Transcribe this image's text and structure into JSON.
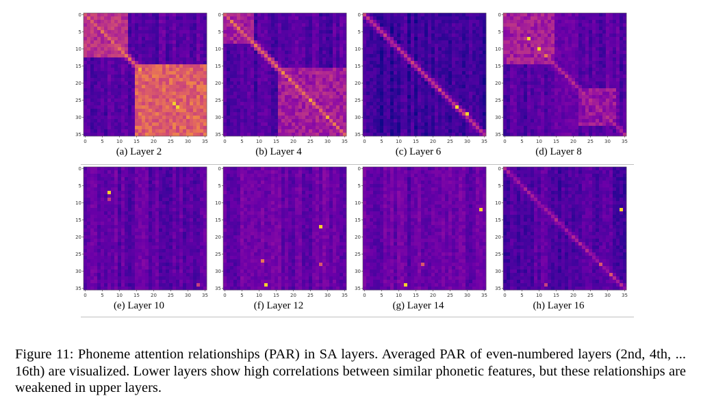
{
  "figure": {
    "caption": "Figure 11: Phoneme attention relationships (PAR) in SA layers. Averaged PAR of even-numbered layers (2nd, 4th, ... 16th) are visualized. Lower layers show high correlations between similar phonetic features, but these relationships are weakened in upper layers."
  },
  "panels": [
    {
      "label": "(a) Layer 2"
    },
    {
      "label": "(b) Layer 4"
    },
    {
      "label": "(c) Layer 6"
    },
    {
      "label": "(d) Layer 8"
    },
    {
      "label": "(e) Layer 10"
    },
    {
      "label": "(f) Layer 12"
    },
    {
      "label": "(g) Layer 14"
    },
    {
      "label": "(h) Layer 16"
    }
  ],
  "chart_data": [
    {
      "type": "heatmap",
      "title": "(a) Layer 2",
      "size": 36,
      "x_ticks": [
        0,
        5,
        10,
        15,
        20,
        25,
        30,
        35
      ],
      "y_ticks": [
        0,
        5,
        10,
        15,
        20,
        25,
        30,
        35
      ],
      "colormap": "plasma",
      "pattern": "strong block-diagonal: bright block 0-12, very bright block 15-35",
      "blocks": [
        [
          0,
          12,
          0.55
        ],
        [
          15,
          35,
          0.72
        ]
      ],
      "diag": 0.75,
      "base": 0.2,
      "hot": [
        [
          16,
          16,
          0.9
        ],
        [
          26,
          26,
          0.95
        ],
        [
          27,
          27,
          0.95
        ],
        [
          30,
          30,
          0.85
        ],
        [
          8,
          8,
          0.75
        ]
      ]
    },
    {
      "type": "heatmap",
      "title": "(b) Layer 4",
      "size": 36,
      "x_ticks": [
        0,
        5,
        10,
        15,
        20,
        25,
        30,
        35
      ],
      "y_ticks": [
        0,
        5,
        10,
        15,
        20,
        25,
        30,
        35
      ],
      "colormap": "plasma",
      "pattern": "diagonal with moderate blocks",
      "blocks": [
        [
          0,
          8,
          0.45
        ],
        [
          16,
          35,
          0.45
        ]
      ],
      "diag": 0.75,
      "base": 0.18,
      "hot": [
        [
          17,
          17,
          0.85
        ],
        [
          25,
          25,
          0.9
        ],
        [
          30,
          30,
          0.9
        ],
        [
          3,
          3,
          0.7
        ]
      ]
    },
    {
      "type": "heatmap",
      "title": "(c) Layer 6",
      "size": 36,
      "x_ticks": [
        0,
        5,
        10,
        15,
        20,
        25,
        30,
        35
      ],
      "y_ticks": [
        0,
        5,
        10,
        15,
        20,
        25,
        30,
        35
      ],
      "colormap": "plasma",
      "pattern": "sparse diagonal",
      "blocks": [],
      "diag": 0.55,
      "base": 0.12,
      "hot": [
        [
          27,
          27,
          0.95
        ],
        [
          29,
          30,
          0.95
        ],
        [
          22,
          22,
          0.7
        ]
      ]
    },
    {
      "type": "heatmap",
      "title": "(d) Layer 8",
      "size": 36,
      "x_ticks": [
        0,
        5,
        10,
        15,
        20,
        25,
        30,
        35
      ],
      "y_ticks": [
        0,
        5,
        10,
        15,
        20,
        25,
        30,
        35
      ],
      "colormap": "plasma",
      "pattern": "bright column bands 5-12, block 22-30",
      "blocks": [
        [
          0,
          14,
          0.45
        ],
        [
          22,
          32,
          0.4
        ]
      ],
      "diag": 0.5,
      "base": 0.2,
      "hot": [
        [
          7,
          7,
          0.95
        ],
        [
          10,
          10,
          0.95
        ],
        [
          12,
          12,
          0.8
        ]
      ]
    },
    {
      "type": "heatmap",
      "title": "(e) Layer 10",
      "size": 36,
      "x_ticks": [
        0,
        5,
        10,
        15,
        20,
        25,
        30,
        35
      ],
      "y_ticks": [
        0,
        5,
        10,
        15,
        20,
        25,
        30,
        35
      ],
      "colormap": "plasma",
      "pattern": "mostly uniform dark purple",
      "blocks": [],
      "diag": 0.15,
      "base": 0.22,
      "hot": [
        [
          7,
          7,
          0.95
        ],
        [
          9,
          7,
          0.6
        ],
        [
          34,
          33,
          0.6
        ]
      ]
    },
    {
      "type": "heatmap",
      "title": "(f) Layer 12",
      "size": 36,
      "x_ticks": [
        0,
        5,
        10,
        15,
        20,
        25,
        30,
        35
      ],
      "y_ticks": [
        0,
        5,
        10,
        15,
        20,
        25,
        30,
        35
      ],
      "colormap": "plasma",
      "pattern": "scattered bright cells",
      "blocks": [],
      "diag": 0.15,
      "base": 0.25,
      "hot": [
        [
          17,
          28,
          0.95
        ],
        [
          34,
          12,
          0.95
        ],
        [
          27,
          11,
          0.8
        ],
        [
          28,
          28,
          0.7
        ]
      ]
    },
    {
      "type": "heatmap",
      "title": "(g) Layer 14",
      "size": 36,
      "x_ticks": [
        0,
        5,
        10,
        15,
        20,
        25,
        30,
        35
      ],
      "y_ticks": [
        0,
        5,
        10,
        15,
        20,
        25,
        30,
        35
      ],
      "colormap": "plasma",
      "pattern": "scattered bright cells",
      "blocks": [],
      "diag": 0.12,
      "base": 0.24,
      "hot": [
        [
          12,
          34,
          0.95
        ],
        [
          34,
          12,
          0.95
        ],
        [
          28,
          17,
          0.7
        ]
      ]
    },
    {
      "type": "heatmap",
      "title": "(h) Layer 16",
      "size": 36,
      "x_ticks": [
        0,
        5,
        10,
        15,
        20,
        25,
        30,
        35
      ],
      "y_ticks": [
        0,
        5,
        10,
        15,
        20,
        25,
        30,
        35
      ],
      "colormap": "plasma",
      "pattern": "faint diagonal, few bright cells",
      "blocks": [],
      "diag": 0.45,
      "base": 0.18,
      "hot": [
        [
          12,
          34,
          0.95
        ],
        [
          28,
          28,
          0.7
        ],
        [
          31,
          31,
          0.7
        ],
        [
          34,
          12,
          0.6
        ]
      ]
    }
  ]
}
